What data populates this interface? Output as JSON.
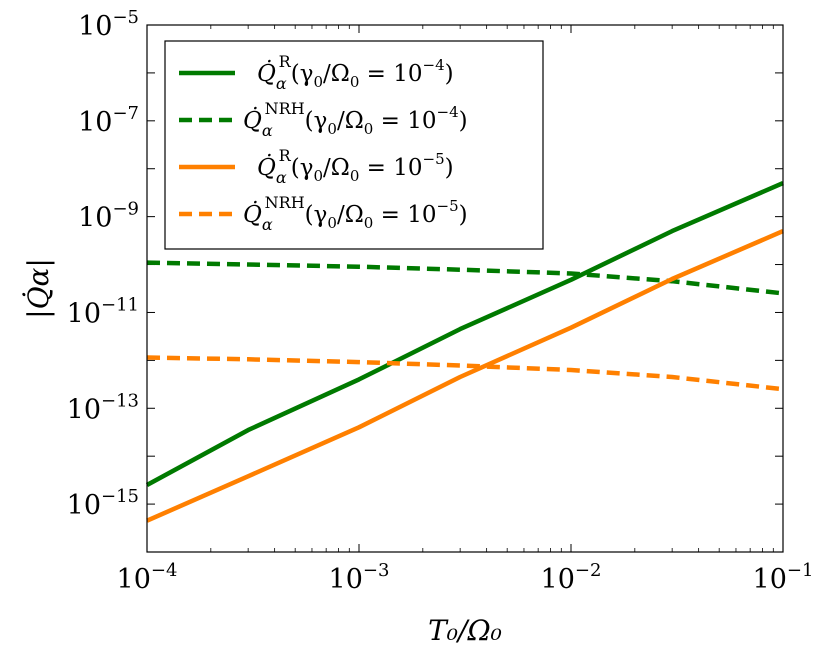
{
  "chart_data": {
    "type": "line",
    "xscale": "log",
    "yscale": "log",
    "xlim": [
      0.0001,
      0.1
    ],
    "ylim": [
      1e-16,
      1e-05
    ],
    "xticks": [
      {
        "value": 0.0001,
        "base": "10",
        "exp": "−4"
      },
      {
        "value": 0.001,
        "base": "10",
        "exp": "−3"
      },
      {
        "value": 0.01,
        "base": "10",
        "exp": "−2"
      },
      {
        "value": 0.1,
        "base": "10",
        "exp": "−1"
      }
    ],
    "yticks": [
      {
        "value": 1e-15,
        "base": "10",
        "exp": "−15"
      },
      {
        "value": 1e-13,
        "base": "10",
        "exp": "−13"
      },
      {
        "value": 1e-11,
        "base": "10",
        "exp": "−11"
      },
      {
        "value": 1e-09,
        "base": "10",
        "exp": "−9"
      },
      {
        "value": 1e-07,
        "base": "10",
        "exp": "−7"
      },
      {
        "value": 1e-05,
        "base": "10",
        "exp": "−5"
      }
    ],
    "xlabel": "T₀/Ω₀",
    "ylabel": "|Q̇α|",
    "grid": false,
    "legend_position": "top-left",
    "series": [
      {
        "name": "Q̇αR(γ0/Ω0 = 10−4)",
        "color": "#007a00",
        "dash": "solid",
        "x": [
          0.0001,
          0.0003,
          0.001,
          0.003,
          0.01,
          0.03,
          0.1
        ],
        "y": [
          2.5e-15,
          3.5e-14,
          4e-13,
          4.5e-12,
          4.8e-11,
          5e-10,
          5e-09
        ]
      },
      {
        "name": "Q̇αNRH(γ0/Ω0 = 10−4)",
        "color": "#007a00",
        "dash": "dashed",
        "x": [
          0.0001,
          0.0003,
          0.001,
          0.003,
          0.01,
          0.03,
          0.1
        ],
        "y": [
          1.1e-10,
          1e-10,
          9e-11,
          7.8e-11,
          6.5e-11,
          4.5e-11,
          2.5e-11
        ]
      },
      {
        "name": "Q̇αR(γ0/Ω0 = 10−5)",
        "color": "#ff8000",
        "dash": "solid",
        "x": [
          0.0001,
          0.0003,
          0.001,
          0.003,
          0.01,
          0.03,
          0.1
        ],
        "y": [
          4.5e-16,
          3.8e-15,
          4e-14,
          4.5e-13,
          4.8e-12,
          5e-11,
          5e-10
        ]
      },
      {
        "name": "Q̇αNRH(γ0/Ω0 = 10−5)",
        "color": "#ff8000",
        "dash": "dashed",
        "x": [
          0.0001,
          0.0003,
          0.001,
          0.003,
          0.01,
          0.03,
          0.1
        ],
        "y": [
          1.15e-12,
          1.05e-12,
          9.2e-13,
          7.8e-13,
          6.3e-13,
          4.5e-13,
          2.5e-13
        ]
      }
    ],
    "legend": [
      {
        "base": "Q̇",
        "sub": "α",
        "sup": "R",
        "rest": "(γ",
        "rest_sub": "0",
        "rest2": "/Ω",
        "rest2_sub": "0",
        "rest3": " = 10",
        "exp": "−4",
        "rest4": ")"
      },
      {
        "base": "Q̇",
        "sub": "α",
        "sup": "NRH",
        "rest": "(γ",
        "rest_sub": "0",
        "rest2": "/Ω",
        "rest2_sub": "0",
        "rest3": " = 10",
        "exp": "−4",
        "rest4": ")"
      },
      {
        "base": "Q̇",
        "sub": "α",
        "sup": "R",
        "rest": "(γ",
        "rest_sub": "0",
        "rest2": "/Ω",
        "rest2_sub": "0",
        "rest3": " = 10",
        "exp": "−5",
        "rest4": ")"
      },
      {
        "base": "Q̇",
        "sub": "α",
        "sup": "NRH",
        "rest": "(γ",
        "rest_sub": "0",
        "rest2": "/Ω",
        "rest2_sub": "0",
        "rest3": " = 10",
        "exp": "−5",
        "rest4": ")"
      }
    ]
  }
}
